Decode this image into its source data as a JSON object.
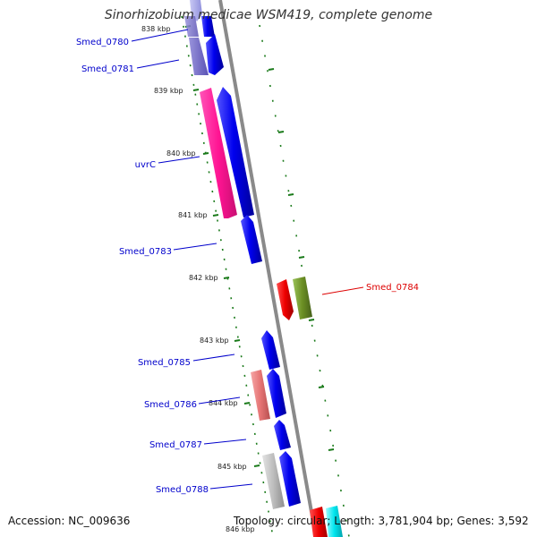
{
  "title": "Sinorhizobium medicae WSM419, complete genome",
  "footer": {
    "accession": "Accession: NC_009636",
    "topology": "Topology: circular; Length: 3,781,904 bp; Genes: 3,592"
  },
  "colors": {
    "forward_gene": "#0000ee",
    "reverse_gene": "#ee0000",
    "label_forward": "#0000cc",
    "label_reverse": "#dd0000",
    "backbone": "#8a8a8a",
    "tick_dashes": "#1a7a1a"
  },
  "ruler": [
    "838 kbp",
    "839 kbp",
    "840 kbp",
    "841 kbp",
    "842 kbp",
    "843 kbp",
    "844 kbp",
    "845 kbp",
    "846 kbp"
  ],
  "genes": [
    {
      "name": "Smed_0780",
      "strand": "forward"
    },
    {
      "name": "Smed_0781",
      "strand": "forward"
    },
    {
      "name": "uvrC",
      "strand": "forward"
    },
    {
      "name": "Smed_0783",
      "strand": "forward"
    },
    {
      "name": "Smed_0784",
      "strand": "reverse"
    },
    {
      "name": "Smed_0785",
      "strand": "forward"
    },
    {
      "name": "Smed_0786",
      "strand": "forward"
    },
    {
      "name": "Smed_0787",
      "strand": "forward"
    },
    {
      "name": "Smed_0788",
      "strand": "forward"
    }
  ]
}
